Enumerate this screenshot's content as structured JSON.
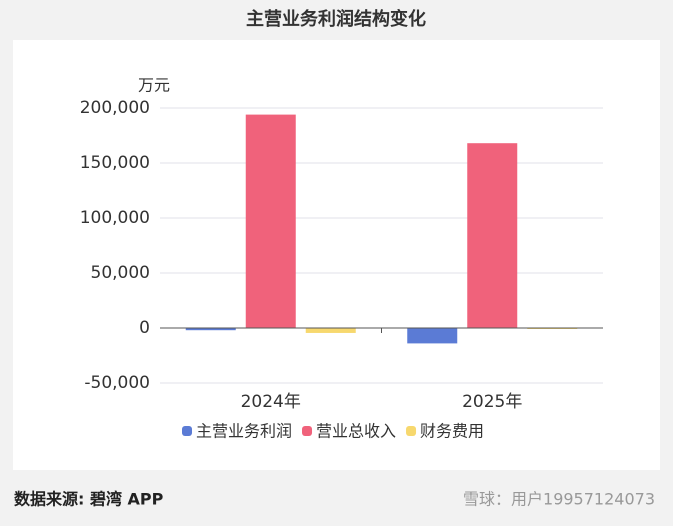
{
  "chart_data": {
    "type": "bar",
    "title": "主营业务利润结构变化",
    "y_unit": "万元",
    "categories": [
      "2024年",
      "2025年"
    ],
    "series": [
      {
        "name": "主营业务利润",
        "color": "#5b7bd5",
        "values": [
          -2000,
          -14000
        ]
      },
      {
        "name": "营业总收入",
        "color": "#f0627b",
        "values": [
          194000,
          168000
        ]
      },
      {
        "name": "财务费用",
        "color": "#f7d86e",
        "values": [
          -4500,
          -800
        ]
      }
    ],
    "ylim": [
      -50000,
      200000
    ],
    "yticks": [
      {
        "value": -50000,
        "label": "-50,000"
      },
      0,
      {
        "value": 50000,
        "label": "50,000"
      },
      {
        "value": 100000,
        "label": "100,000"
      },
      {
        "value": 150000,
        "label": "150,000"
      },
      {
        "value": 200000,
        "label": "200,000"
      }
    ],
    "grid": true,
    "source": "数据来源: 碧湾 APP",
    "watermark": "雪球：用户19957124073"
  }
}
